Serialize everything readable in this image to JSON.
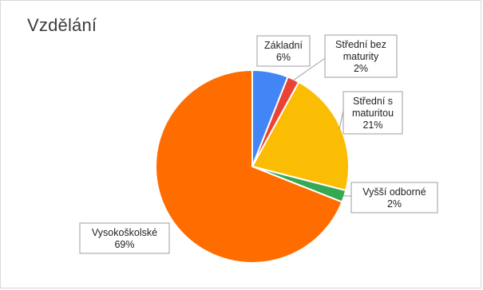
{
  "chart_data": {
    "type": "pie",
    "title": "Vzdělání",
    "slices": [
      {
        "name": "Základní",
        "value": 6,
        "label": [
          "Základní",
          "6%"
        ],
        "color": "#4285f4"
      },
      {
        "name": "Střední bez maturity",
        "value": 2,
        "label": [
          "Střední bez",
          "maturity",
          "2%"
        ],
        "color": "#ea4335"
      },
      {
        "name": "Střední s maturitou",
        "value": 21,
        "label": [
          "Střední s",
          "maturitou",
          "21%"
        ],
        "color": "#fbbc04"
      },
      {
        "name": "Vyšší odborné",
        "value": 2,
        "label": [
          "Vyšší odborné",
          "2%"
        ],
        "color": "#34a853"
      },
      {
        "name": "Vysokoškolské",
        "value": 69,
        "label": [
          "Vysokoškolské",
          "69%"
        ],
        "color": "#ff6d01"
      }
    ],
    "start_angle_deg": 0,
    "direction": "clockwise"
  }
}
